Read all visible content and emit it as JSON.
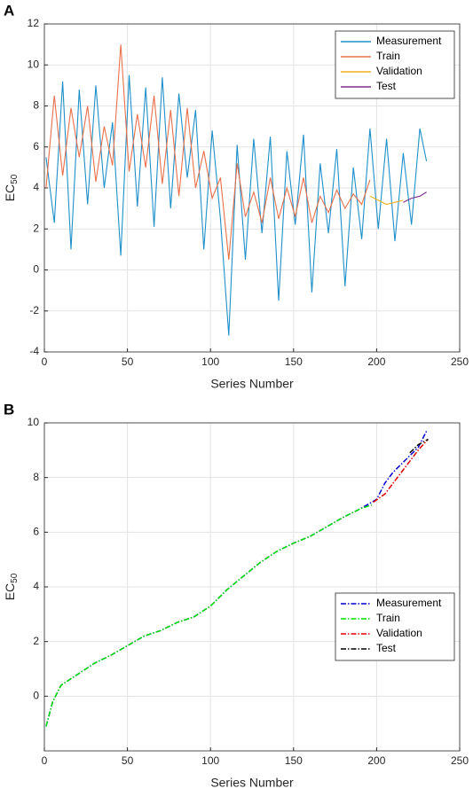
{
  "chart_data": [
    {
      "type": "line",
      "panel_label": "A",
      "xlabel": "Series Number",
      "ylabel": {
        "text": "EC",
        "subscript": "50"
      },
      "xlim": [
        0,
        250
      ],
      "xticks": [
        0,
        50,
        100,
        150,
        200,
        250
      ],
      "ylim": [
        -4,
        12
      ],
      "yticks": [
        -4,
        -2,
        0,
        2,
        4,
        6,
        8,
        10,
        12
      ],
      "grid": true,
      "legend": "upper right",
      "line_style": "solid",
      "series": [
        {
          "name": "Measurement",
          "color": "#1f8fc9",
          "x": [
            1,
            6,
            11,
            16,
            21,
            26,
            31,
            36,
            41,
            46,
            51,
            56,
            61,
            66,
            71,
            76,
            81,
            86,
            91,
            96,
            101,
            106,
            111,
            116,
            121,
            126,
            131,
            136,
            141,
            146,
            151,
            156,
            161,
            166,
            171,
            176,
            181,
            186,
            191,
            196,
            201,
            206,
            211,
            216,
            221,
            226,
            230
          ],
          "values": [
            5.5,
            2.3,
            9.2,
            1.0,
            8.8,
            3.2,
            9.0,
            4.0,
            7.2,
            0.7,
            9.5,
            3.1,
            8.9,
            2.1,
            9.4,
            3.0,
            8.6,
            4.5,
            7.8,
            1.0,
            6.8,
            2.5,
            -3.2,
            6.1,
            0.5,
            6.4,
            1.8,
            6.5,
            -1.5,
            5.8,
            2.2,
            6.6,
            -1.1,
            5.2,
            1.8,
            5.9,
            -0.8,
            5.0,
            1.5,
            6.9,
            2.0,
            6.4,
            1.4,
            5.7,
            2.2,
            6.9,
            5.3
          ]
        },
        {
          "name": "Train",
          "color": "#e8704a",
          "x": [
            1,
            6,
            11,
            16,
            21,
            26,
            31,
            36,
            41,
            46,
            51,
            56,
            61,
            66,
            71,
            76,
            81,
            86,
            91,
            96,
            101,
            106,
            111,
            116,
            121,
            126,
            131,
            136,
            141,
            146,
            151,
            156,
            161,
            166,
            171,
            176,
            181,
            186,
            191,
            196
          ],
          "values": [
            4.0,
            8.5,
            4.6,
            7.9,
            5.5,
            8.0,
            4.3,
            7.0,
            5.1,
            11.0,
            4.8,
            7.6,
            5.0,
            8.5,
            4.2,
            7.8,
            3.6,
            7.9,
            4.0,
            5.8,
            3.5,
            4.5,
            0.5,
            5.2,
            2.6,
            3.8,
            2.3,
            4.5,
            2.5,
            4.0,
            2.6,
            4.5,
            2.3,
            3.6,
            2.8,
            3.9,
            3.0,
            3.7,
            3.2,
            4.4
          ]
        },
        {
          "name": "Validation",
          "color": "#edb120",
          "x": [
            196,
            201,
            206,
            211,
            216
          ],
          "values": [
            3.6,
            3.4,
            3.2,
            3.3,
            3.4
          ]
        },
        {
          "name": "Test",
          "color": "#7e2f8e",
          "x": [
            216,
            221,
            226,
            230
          ],
          "values": [
            3.3,
            3.5,
            3.6,
            3.8
          ]
        }
      ]
    },
    {
      "type": "line",
      "panel_label": "B",
      "xlabel": "Series Number",
      "ylabel": {
        "text": "EC",
        "subscript": "50"
      },
      "xlim": [
        0,
        250
      ],
      "xticks": [
        0,
        50,
        100,
        150,
        200,
        250
      ],
      "ylim": [
        -2,
        10
      ],
      "yticks": [
        0,
        2,
        4,
        6,
        8,
        10
      ],
      "grid": true,
      "legend": "lower right",
      "line_style": "dashdot",
      "series": [
        {
          "name": "Measurement",
          "color": "#0000cc",
          "x": [
            1,
            5,
            10,
            20,
            30,
            40,
            50,
            60,
            70,
            80,
            90,
            100,
            110,
            120,
            130,
            140,
            150,
            160,
            170,
            180,
            190,
            200,
            205,
            210,
            215,
            220,
            225,
            230
          ],
          "values": [
            -1.1,
            -0.2,
            0.4,
            0.8,
            1.2,
            1.5,
            1.85,
            2.2,
            2.4,
            2.7,
            2.9,
            3.3,
            3.9,
            4.4,
            4.9,
            5.3,
            5.6,
            5.85,
            6.2,
            6.55,
            6.85,
            7.2,
            7.8,
            8.2,
            8.5,
            8.8,
            9.1,
            9.7
          ]
        },
        {
          "name": "Train",
          "color": "#00e000",
          "x": [
            1,
            5,
            10,
            20,
            30,
            40,
            50,
            60,
            70,
            80,
            90,
            100,
            110,
            120,
            130,
            140,
            150,
            160,
            170,
            180,
            190,
            197
          ],
          "values": [
            -1.1,
            -0.2,
            0.4,
            0.8,
            1.2,
            1.5,
            1.85,
            2.2,
            2.4,
            2.7,
            2.9,
            3.3,
            3.9,
            4.4,
            4.9,
            5.3,
            5.6,
            5.85,
            6.2,
            6.55,
            6.85,
            7.0
          ]
        },
        {
          "name": "Validation",
          "color": "#e00000",
          "x": [
            198,
            205,
            210,
            215,
            220,
            225,
            231
          ],
          "values": [
            7.1,
            7.4,
            7.8,
            8.2,
            8.6,
            9.0,
            9.4
          ]
        },
        {
          "name": "Test",
          "color": "#000000",
          "x": [
            220,
            225,
            231
          ],
          "values": [
            8.9,
            9.2,
            9.4
          ]
        }
      ]
    }
  ]
}
